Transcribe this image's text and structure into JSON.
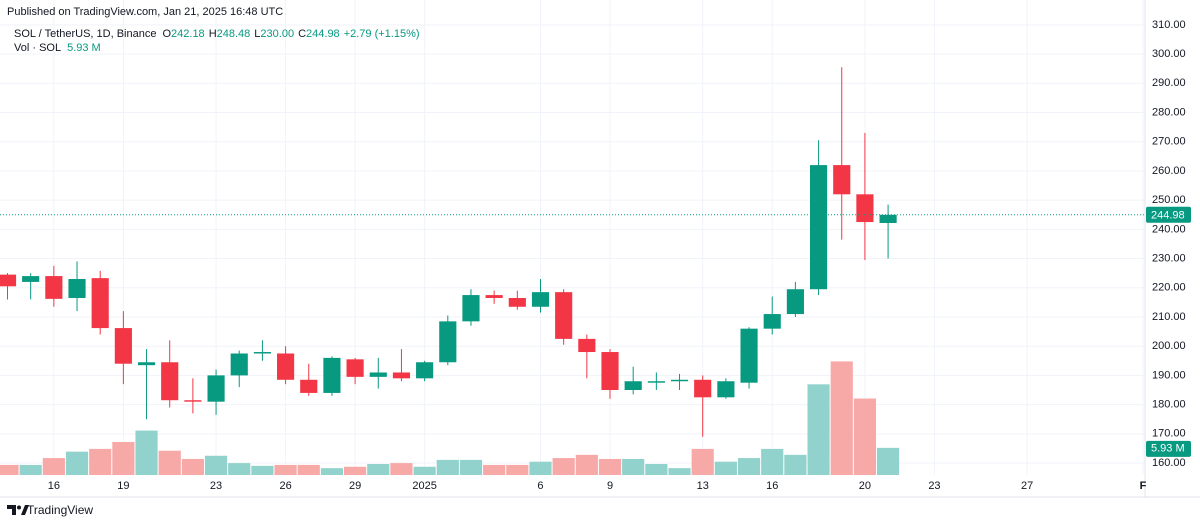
{
  "header": {
    "published": "Published on TradingView.com, Jan 21, 2025 16:48 UTC",
    "symbol": "SOL / TetherUS, 1D, Binance",
    "ohlc": [
      {
        "label": "O",
        "value": "242.18"
      },
      {
        "label": "H",
        "value": "248.48"
      },
      {
        "label": "L",
        "value": "230.00"
      },
      {
        "label": "C",
        "value": "244.98"
      }
    ],
    "change": "+2.79 (+1.15%)",
    "volume_title": "Vol · SOL",
    "volume_value": "5.93 M"
  },
  "footer": {
    "brand": "TradingView"
  },
  "chart_data": {
    "type": "candlestick",
    "x": [
      "2024-12-14",
      "2024-12-15",
      "2024-12-16",
      "2024-12-17",
      "2024-12-18",
      "2024-12-19",
      "2024-12-20",
      "2024-12-21",
      "2024-12-22",
      "2024-12-23",
      "2024-12-24",
      "2024-12-25",
      "2024-12-26",
      "2024-12-27",
      "2024-12-28",
      "2024-12-29",
      "2024-12-30",
      "2024-12-31",
      "2025-01-01",
      "2025-01-02",
      "2025-01-03",
      "2025-01-04",
      "2025-01-05",
      "2025-01-06",
      "2025-01-07",
      "2025-01-08",
      "2025-01-09",
      "2025-01-10",
      "2025-01-11",
      "2025-01-12",
      "2025-01-13",
      "2025-01-14",
      "2025-01-15",
      "2025-01-16",
      "2025-01-17",
      "2025-01-18",
      "2025-01-19",
      "2025-01-20",
      "2025-01-21"
    ],
    "open": [
      224.5,
      222,
      224,
      216.5,
      223.3,
      206.2,
      193.5,
      194.5,
      181.5,
      181,
      190,
      197.5,
      197.5,
      188.5,
      184,
      195.5,
      189.5,
      191,
      189,
      194.5,
      208.5,
      217.5,
      216.5,
      213.5,
      218.5,
      202.5,
      198,
      185,
      187.5,
      188,
      188.5,
      182.5,
      187.5,
      206,
      211,
      219.5,
      262,
      252,
      242.18
    ],
    "high": [
      225,
      225,
      227.5,
      229,
      225.8,
      212,
      199,
      202,
      189,
      192,
      198.5,
      202,
      200,
      194,
      196.5,
      196,
      196,
      199,
      195,
      210.5,
      219.5,
      219,
      219,
      223,
      219.5,
      204,
      199,
      193,
      191,
      190.5,
      190,
      189,
      206.5,
      217,
      222,
      270.5,
      295.5,
      273,
      248.48
    ],
    "low": [
      216,
      216,
      213.5,
      212,
      204,
      187,
      175,
      179,
      177,
      176.5,
      186,
      195,
      187,
      183,
      183,
      187,
      185.5,
      188,
      188,
      193.5,
      207,
      214.5,
      212.5,
      211.5,
      200.5,
      189,
      182,
      183.5,
      185,
      185,
      169,
      182,
      185.5,
      204,
      210,
      217.5,
      236.5,
      229.5,
      230
    ],
    "close": [
      220.5,
      224,
      216.2,
      223,
      206.2,
      194,
      194.5,
      181.5,
      181,
      190,
      197.5,
      198,
      188.5,
      184,
      196,
      189.5,
      191,
      189,
      194.5,
      208.5,
      217.5,
      216.5,
      213.5,
      218.5,
      202.5,
      198,
      185,
      188,
      188,
      188.5,
      182.5,
      188,
      206,
      211,
      219.5,
      262,
      252,
      242.5,
      244.98
    ],
    "volume": [
      2.2,
      2.2,
      3.7,
      5.1,
      5.7,
      7.2,
      9.7,
      5.3,
      3.5,
      4.2,
      2.6,
      2.0,
      2.2,
      2.2,
      1.5,
      1.8,
      2.4,
      2.6,
      1.8,
      3.3,
      3.3,
      2.2,
      2.2,
      2.9,
      3.7,
      4.4,
      3.5,
      3.5,
      2.4,
      1.5,
      5.7,
      2.9,
      3.7,
      5.7,
      4.4,
      19.8,
      24.8,
      16.7,
      5.93
    ],
    "up_color": "#089981",
    "down_color": "#f23645",
    "volume_up_color": "#92d2cc",
    "volume_down_color": "#f7a9a7",
    "xlim": [
      "2024-12-14",
      "2025-02-01"
    ],
    "xticks": [
      {
        "value": "2024-12-16",
        "label": "16"
      },
      {
        "value": "2024-12-19",
        "label": "19"
      },
      {
        "value": "2024-12-23",
        "label": "23"
      },
      {
        "value": "2024-12-26",
        "label": "26"
      },
      {
        "value": "2024-12-29",
        "label": "29"
      },
      {
        "value": "2025-01-01",
        "label": "2025"
      },
      {
        "value": "2025-01-06",
        "label": "6"
      },
      {
        "value": "2025-01-09",
        "label": "9"
      },
      {
        "value": "2025-01-13",
        "label": "13"
      },
      {
        "value": "2025-01-16",
        "label": "16"
      },
      {
        "value": "2025-01-20",
        "label": "20"
      },
      {
        "value": "2025-01-23",
        "label": "23"
      },
      {
        "value": "2025-01-27",
        "label": "27"
      },
      {
        "value": "2025-02-01",
        "label": "F"
      }
    ],
    "ylim": [
      155.9,
      312.7
    ],
    "yticks": [
      {
        "value": 160,
        "label": "160.00"
      },
      {
        "value": 170,
        "label": "170.00"
      },
      {
        "value": 180,
        "label": "180.00"
      },
      {
        "value": 190,
        "label": "190.00"
      },
      {
        "value": 200,
        "label": "200.00"
      },
      {
        "value": 210,
        "label": "210.00"
      },
      {
        "value": 220,
        "label": "220.00"
      },
      {
        "value": 230,
        "label": "230.00"
      },
      {
        "value": 240,
        "label": "240.00"
      },
      {
        "value": 250,
        "label": "250.00"
      },
      {
        "value": 260,
        "label": "260.00"
      },
      {
        "value": 270,
        "label": "270.00"
      },
      {
        "value": 280,
        "label": "280.00"
      },
      {
        "value": 290,
        "label": "290.00"
      },
      {
        "value": 300,
        "label": "300.00"
      },
      {
        "value": 310,
        "label": "310.00"
      }
    ],
    "volume_ylim": [
      0,
      100
    ],
    "grid": true
  }
}
